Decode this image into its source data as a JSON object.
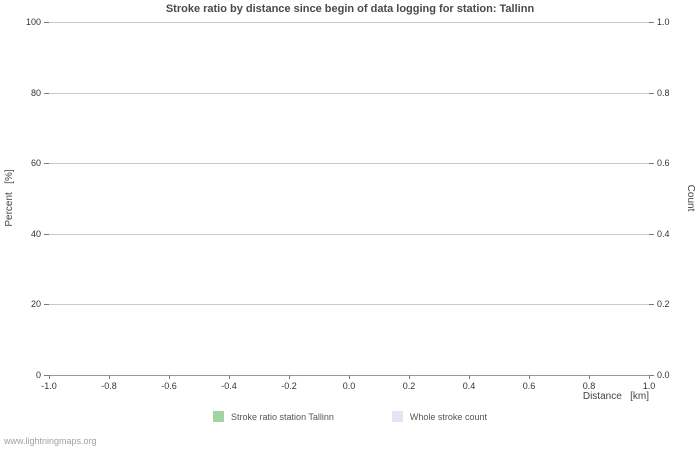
{
  "chart_data": {
    "type": "line",
    "title": "Stroke ratio by distance since begin of data logging for station: Tallinn",
    "xlabel": "Distance   [km]",
    "ylabel_left": "Percent   [%]",
    "ylabel_right": "Count",
    "xlim": [
      -1.0,
      1.0
    ],
    "ylim_left": [
      0,
      100
    ],
    "ylim_right": [
      0.0,
      1.0
    ],
    "x_ticks": [
      "-1.0",
      "-0.8",
      "-0.6",
      "-0.4",
      "-0.2",
      "0.0",
      "0.2",
      "0.4",
      "0.6",
      "0.8",
      "1.0"
    ],
    "y_left_ticks": [
      "0",
      "20",
      "40",
      "60",
      "80",
      "100"
    ],
    "y_right_ticks": [
      "0.0",
      "0.2",
      "0.4",
      "0.6",
      "0.8",
      "1.0"
    ],
    "grid": "horizontal",
    "legend_position": "bottom-center",
    "series": [
      {
        "name": "Stroke ratio station Tallinn",
        "color": "#a3d3a3",
        "values": []
      },
      {
        "name": "Whole stroke count",
        "color": "#e4e4f7",
        "values": []
      }
    ]
  },
  "footer": {
    "link_text": "www.lightningmaps.org"
  }
}
